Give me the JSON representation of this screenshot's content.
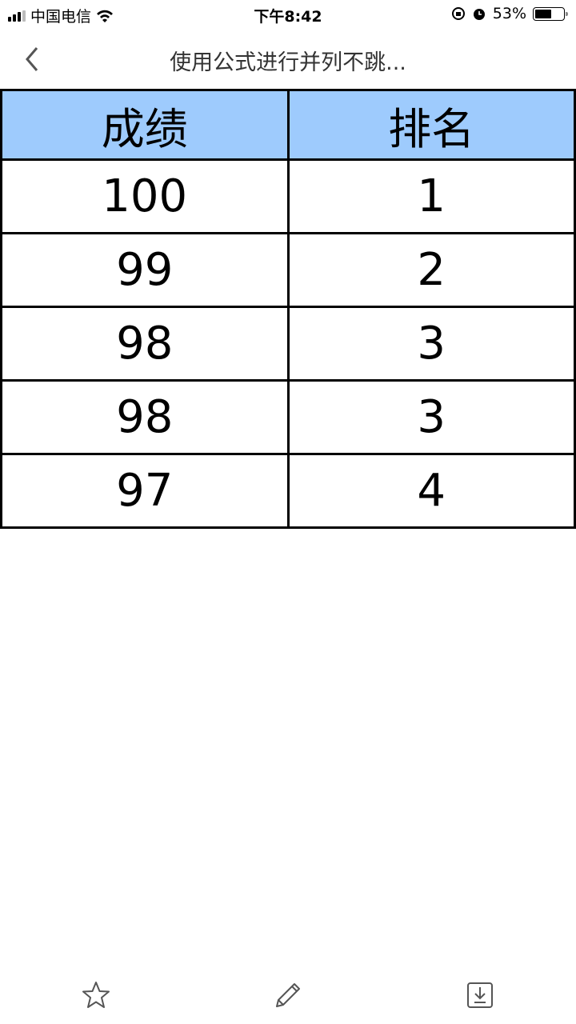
{
  "status_bar": {
    "carrier": "中国电信",
    "time": "下午8:42",
    "battery": "53%",
    "battery_level": 0.53
  },
  "nav": {
    "title": "使用公式进行并列不跳..."
  },
  "table": {
    "headers": [
      "成绩",
      "排名"
    ],
    "rows": [
      [
        "100",
        "1"
      ],
      [
        "99",
        "2"
      ],
      [
        "98",
        "3"
      ],
      [
        "98",
        "3"
      ],
      [
        "97",
        "4"
      ]
    ]
  },
  "toolbar": {
    "icons": [
      "star-icon",
      "pencil-icon",
      "download-icon"
    ]
  },
  "colors": {
    "header_bg": "#9ecbfd"
  }
}
